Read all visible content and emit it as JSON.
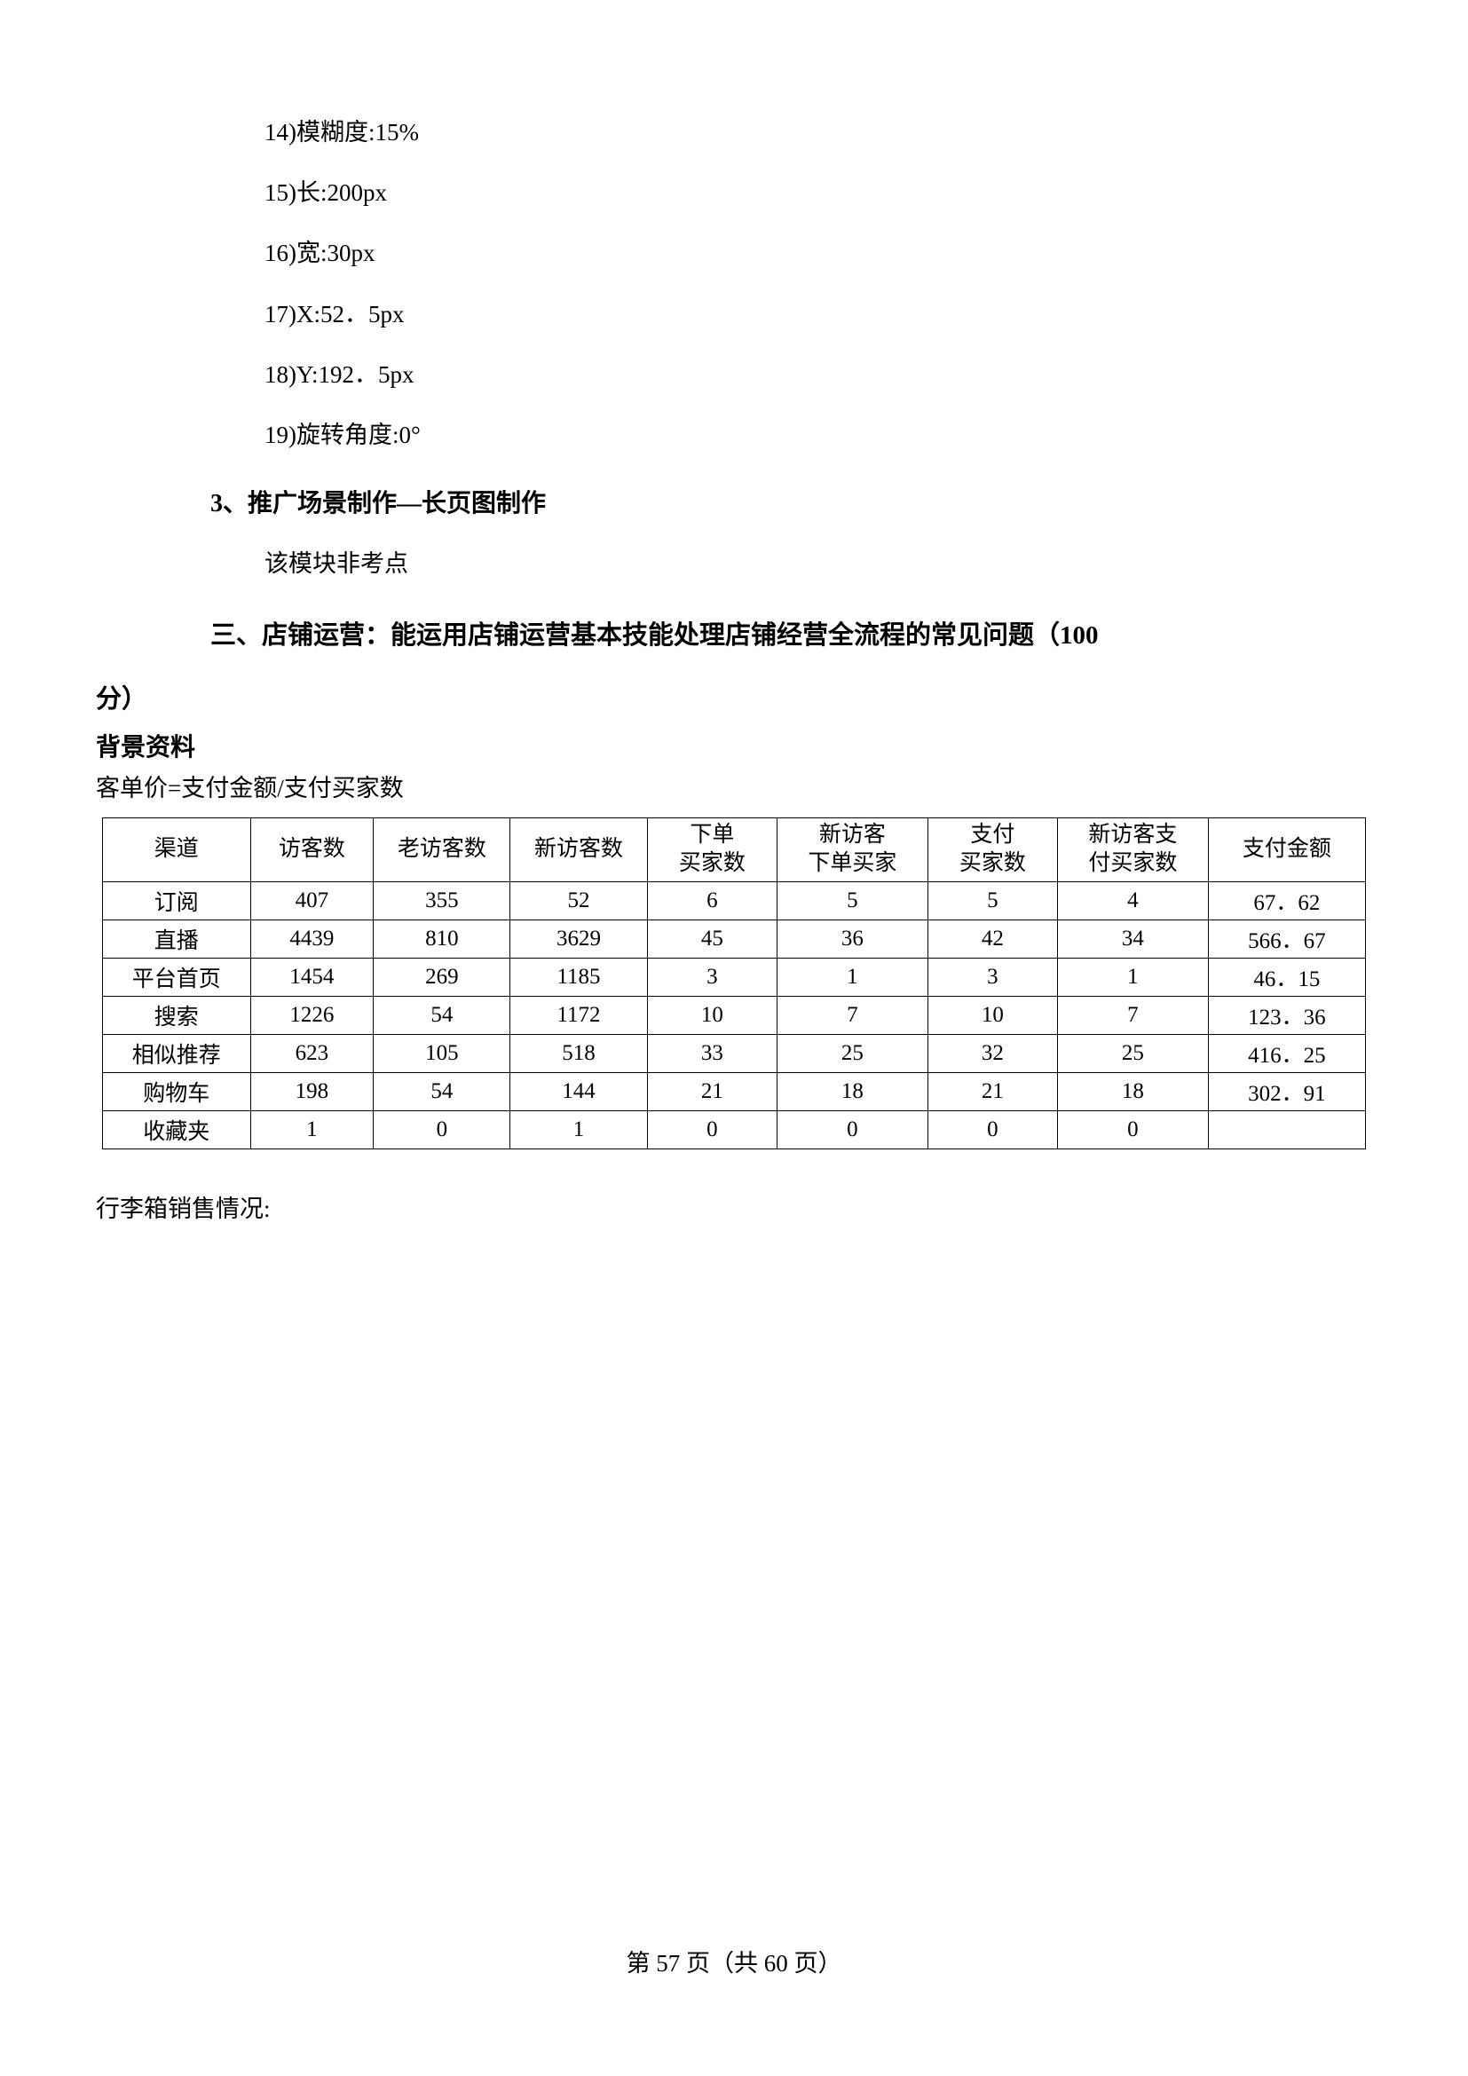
{
  "list_items": [
    "14)模糊度:15%",
    "15)长:200px",
    "16)宽:30px",
    "17)X:52．5px",
    "18)Y:192．5px",
    "19)旋转角度:0°"
  ],
  "heading_3": "3、推广场景制作—长页图制作",
  "sub_note": "该模块非考点",
  "section_heading_line1": "三、店铺运营：能运用店铺运营基本技能处理店铺经营全流程的常见问题（100",
  "section_heading_line2": "分）",
  "bg_heading": "背景资料",
  "formula": "客单价=支付金额/支付买家数",
  "table": {
    "headers": [
      "渠道",
      "访客数",
      "老访客数",
      "新访客数",
      "下单\n买家数",
      "新访客\n下单买家",
      "支付\n买家数",
      "新访客支\n付买家数",
      "支付金额"
    ],
    "rows": [
      [
        "订阅",
        "407",
        "355",
        "52",
        "6",
        "5",
        "5",
        "4",
        "67．62"
      ],
      [
        "直播",
        "4439",
        "810",
        "3629",
        "45",
        "36",
        "42",
        "34",
        "566．67"
      ],
      [
        "平台首页",
        "1454",
        "269",
        "1185",
        "3",
        "1",
        "3",
        "1",
        "46．15"
      ],
      [
        "搜索",
        "1226",
        "54",
        "1172",
        "10",
        "7",
        "10",
        "7",
        "123．36"
      ],
      [
        "相似推荐",
        "623",
        "105",
        "518",
        "33",
        "25",
        "32",
        "25",
        "416．25"
      ],
      [
        "购物车",
        "198",
        "54",
        "144",
        "21",
        "18",
        "21",
        "18",
        "302．91"
      ],
      [
        "收藏夹",
        "1",
        "0",
        "1",
        "0",
        "0",
        "0",
        "0",
        ""
      ]
    ]
  },
  "caption": "行李箱销售情况:",
  "footer": "第 57 页（共 60 页）"
}
